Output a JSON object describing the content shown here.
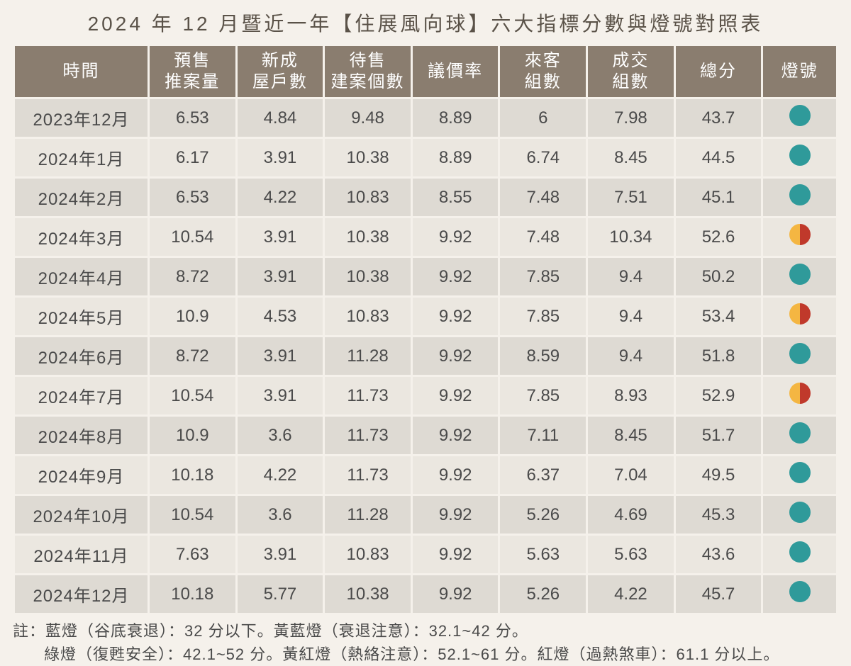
{
  "title": "2024 年 12 月暨近一年【住展風向球】六大指標分數與燈號對照表",
  "colors": {
    "header_bg": "#8a7d6f",
    "header_fg": "#ffffff",
    "row_odd_bg": "#dedad3",
    "row_even_bg": "#ebe7e0",
    "page_bg": "#f5f1eb",
    "text": "#4a4a4a",
    "green": "#2f9a9a",
    "yellow": "#f4b642",
    "red": "#c0392b"
  },
  "columns": [
    "時間",
    "預售\n推案量",
    "新成\n屋戶數",
    "待售\n建案個數",
    "議價率",
    "來客\n組數",
    "成交\n組數",
    "總分",
    "燈號"
  ],
  "rows": [
    {
      "time": "2023年12月",
      "v": [
        "6.53",
        "4.84",
        "9.48",
        "8.89",
        "6",
        "7.98",
        "43.7"
      ],
      "light": "green"
    },
    {
      "time": "2024年1月",
      "v": [
        "6.17",
        "3.91",
        "10.38",
        "8.89",
        "6.74",
        "8.45",
        "44.5"
      ],
      "light": "green"
    },
    {
      "time": "2024年2月",
      "v": [
        "6.53",
        "4.22",
        "10.83",
        "8.55",
        "7.48",
        "7.51",
        "45.1"
      ],
      "light": "green"
    },
    {
      "time": "2024年3月",
      "v": [
        "10.54",
        "3.91",
        "10.38",
        "9.92",
        "7.48",
        "10.34",
        "52.6"
      ],
      "light": "yellow-red"
    },
    {
      "time": "2024年4月",
      "v": [
        "8.72",
        "3.91",
        "10.38",
        "9.92",
        "7.85",
        "9.4",
        "50.2"
      ],
      "light": "green"
    },
    {
      "time": "2024年5月",
      "v": [
        "10.9",
        "4.53",
        "10.83",
        "9.92",
        "7.85",
        "9.4",
        "53.4"
      ],
      "light": "yellow-red"
    },
    {
      "time": "2024年6月",
      "v": [
        "8.72",
        "3.91",
        "11.28",
        "9.92",
        "8.59",
        "9.4",
        "51.8"
      ],
      "light": "green"
    },
    {
      "time": "2024年7月",
      "v": [
        "10.54",
        "3.91",
        "11.73",
        "9.92",
        "7.85",
        "8.93",
        "52.9"
      ],
      "light": "yellow-red"
    },
    {
      "time": "2024年8月",
      "v": [
        "10.9",
        "3.6",
        "11.73",
        "9.92",
        "7.11",
        "8.45",
        "51.7"
      ],
      "light": "green"
    },
    {
      "time": "2024年9月",
      "v": [
        "10.18",
        "4.22",
        "11.73",
        "9.92",
        "6.37",
        "7.04",
        "49.5"
      ],
      "light": "green"
    },
    {
      "time": "2024年10月",
      "v": [
        "10.54",
        "3.6",
        "11.28",
        "9.92",
        "5.26",
        "4.69",
        "45.3"
      ],
      "light": "green"
    },
    {
      "time": "2024年11月",
      "v": [
        "7.63",
        "3.91",
        "10.83",
        "9.92",
        "5.63",
        "5.63",
        "43.6"
      ],
      "light": "green"
    },
    {
      "time": "2024年12月",
      "v": [
        "10.18",
        "5.77",
        "10.38",
        "9.92",
        "5.26",
        "4.22",
        "45.7"
      ],
      "light": "green"
    }
  ],
  "note_line1": "註：藍燈（谷底衰退）：32 分以下。黃藍燈（衰退注意）：32.1~42 分。",
  "note_line2": "綠燈（復甦安全）：42.1~52 分。黃紅燈（熱絡注意）：52.1~61 分。紅燈（過熱煞車）：61.1 分以上。"
}
